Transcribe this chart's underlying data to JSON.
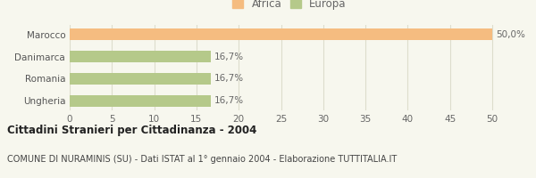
{
  "categories": [
    "Marocco",
    "Danimarca",
    "Romania",
    "Ungheria"
  ],
  "values": [
    50.0,
    16.7,
    16.7,
    16.7
  ],
  "labels": [
    "50,0%",
    "16,7%",
    "16,7%",
    "16,7%"
  ],
  "colors": [
    "#F5BC80",
    "#B5C98A",
    "#B5C98A",
    "#B5C98A"
  ],
  "legend": [
    {
      "label": "Africa",
      "color": "#F5BC80"
    },
    {
      "label": "Europa",
      "color": "#B5C98A"
    }
  ],
  "xlim": [
    0,
    52
  ],
  "xticks": [
    0,
    5,
    10,
    15,
    20,
    25,
    30,
    35,
    40,
    45,
    50
  ],
  "title": "Cittadini Stranieri per Cittadinanza - 2004",
  "subtitle": "COMUNE DI NURAMINIS (SU) - Dati ISTAT al 1° gennaio 2004 - Elaborazione TUTTITALIA.IT",
  "background_color": "#f7f7ee",
  "grid_color": "#ddddcc",
  "bar_height": 0.52,
  "title_fontsize": 8.5,
  "subtitle_fontsize": 7.0,
  "label_fontsize": 7.5,
  "tick_fontsize": 7.5,
  "legend_fontsize": 8.5
}
